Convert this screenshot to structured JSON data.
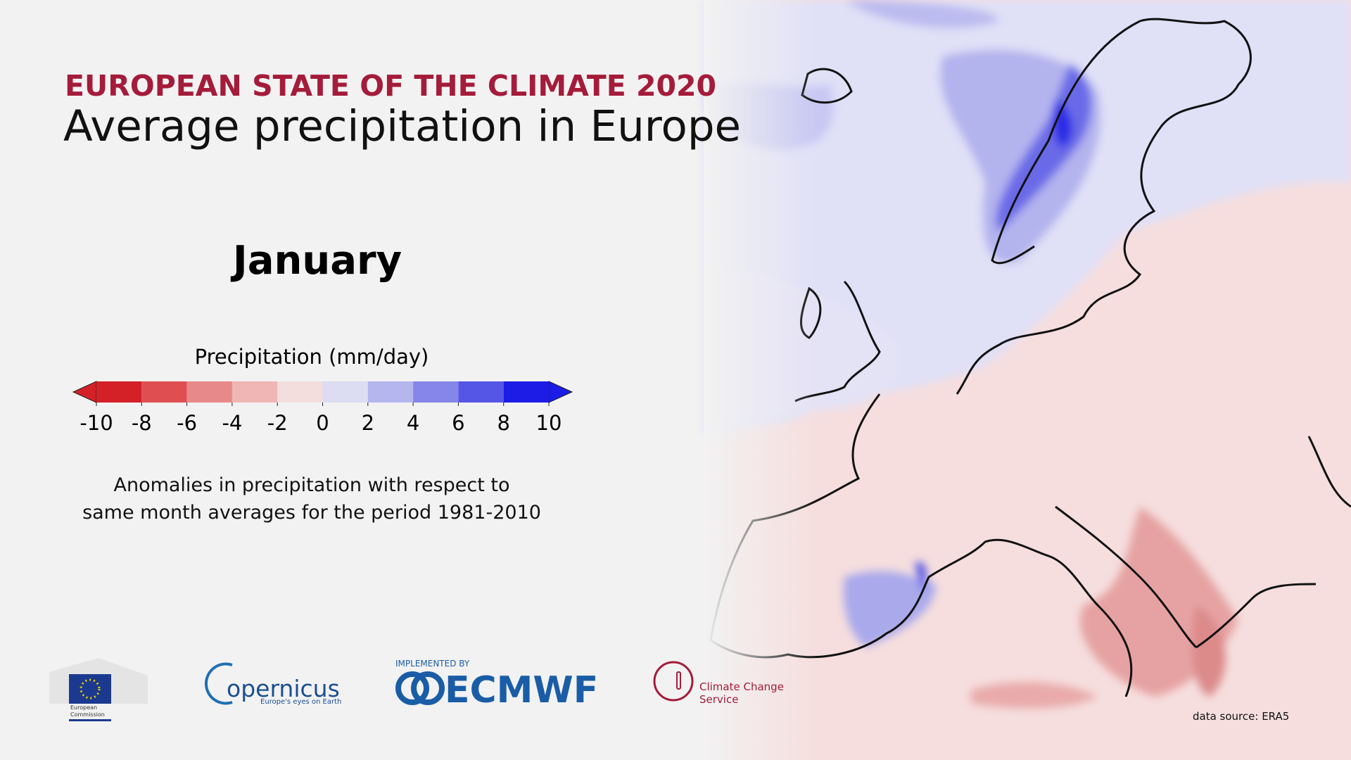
{
  "header": {
    "title": "EUROPEAN STATE OF THE CLIMATE 2020",
    "subtitle": "Average precipitation in Europe"
  },
  "month": "January",
  "legend": {
    "title": "Precipitation (mm/day)",
    "ticks": [
      -10,
      -8,
      -6,
      -4,
      -2,
      0,
      2,
      4,
      6,
      8,
      10
    ],
    "colors": [
      "#d42027",
      "#df4f52",
      "#e7898a",
      "#efb6b5",
      "#f3dddd",
      "#dcdcf3",
      "#b6b6ef",
      "#8585ea",
      "#5656e6",
      "#1c1ce6"
    ]
  },
  "description": [
    "Anomalies in precipitation with respect to",
    "same month averages for the period 1981-2010"
  ],
  "logos": {
    "ec": [
      "European",
      "Commission"
    ],
    "copernicus": [
      "opernicus",
      "Europe's eyes on Earth"
    ],
    "ecmwf": [
      "IMPLEMENTED BY",
      "ECMWF"
    ],
    "c3s": [
      "Climate Change",
      "Service"
    ]
  },
  "source": "data source: ERA5"
}
